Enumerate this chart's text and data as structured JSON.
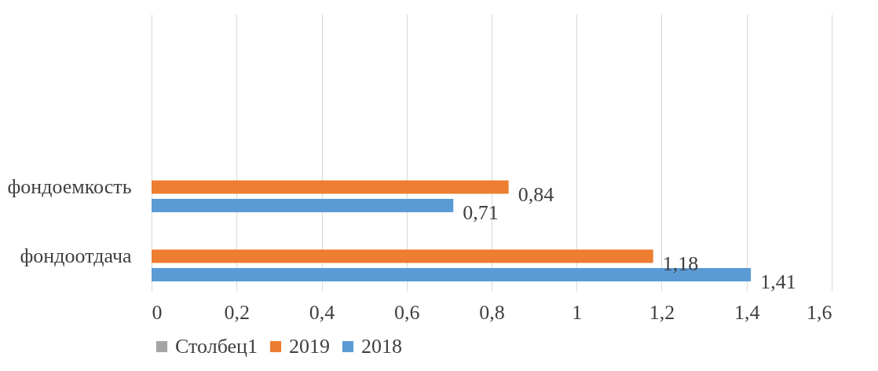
{
  "chart_data": {
    "type": "bar",
    "orientation": "horizontal",
    "categories": [
      null,
      null,
      "фондоемкость",
      "фондоотдача"
    ],
    "series": [
      {
        "name": "Столбец1",
        "color": "#a5a5a5",
        "values": [
          null,
          null,
          null,
          null
        ],
        "value_labels": [
          null,
          null,
          null,
          null
        ]
      },
      {
        "name": "2019",
        "color": "#ed7d31",
        "values": [
          null,
          null,
          0.84,
          1.18
        ],
        "value_labels": [
          null,
          null,
          "0,84",
          "1,18"
        ]
      },
      {
        "name": "2018",
        "color": "#5b9bd5",
        "values": [
          null,
          null,
          0.71,
          1.41
        ],
        "value_labels": [
          null,
          null,
          "0,71",
          "1,41"
        ]
      }
    ],
    "xlim": [
      0,
      1.6
    ],
    "xticks": [
      0,
      {
        "value": 0.2,
        "label": "0,2"
      },
      {
        "value": 0.4,
        "label": "0,4"
      },
      {
        "value": 0.6,
        "label": "0,6"
      },
      {
        "value": 0.8,
        "label": "0,8"
      },
      1,
      {
        "value": 1.2,
        "label": "1,2"
      },
      {
        "value": 1.4,
        "label": "1,4"
      },
      {
        "value": 1.6,
        "label": "1,6"
      }
    ],
    "grid": "x",
    "legend": "bottom"
  }
}
